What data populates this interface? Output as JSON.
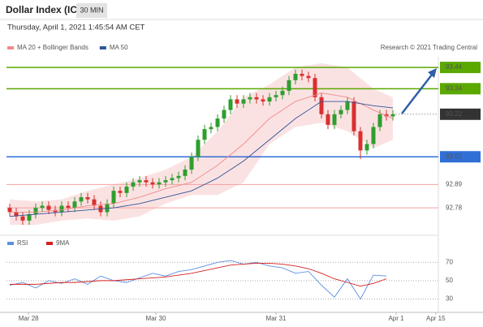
{
  "header": {
    "title": "Dollar Index (ICE)",
    "interval": "30 MIN",
    "timestamp": "Thursday, April 1, 2021 1:45:54 AM CET",
    "credit": "Research © 2021 Trading Central"
  },
  "chart_data": [
    {
      "type": "candlestick",
      "xlim": [
        -0.5,
        66
      ],
      "xticks": [
        {
          "value": 2.9,
          "label": "Mar 28"
        },
        {
          "value": 22.5,
          "label": "Mar 30"
        },
        {
          "value": 41,
          "label": "Mar 31"
        },
        {
          "value": 59.5,
          "label": "Apr 1"
        },
        {
          "value": 65.6,
          "label": "Apr 15"
        }
      ],
      "ylim": [
        92.67,
        93.49
      ],
      "open": [
        92.78,
        92.76,
        92.74,
        92.72,
        92.75,
        92.78,
        92.79,
        92.77,
        92.76,
        92.79,
        92.78,
        92.81,
        92.83,
        92.82,
        92.79,
        92.76,
        92.8,
        92.86,
        92.85,
        92.88,
        92.9,
        92.91,
        92.9,
        92.89,
        92.9,
        92.91,
        92.92,
        92.93,
        92.96,
        93.02,
        93.1,
        93.15,
        93.16,
        93.2,
        93.24,
        93.29,
        93.27,
        93.29,
        93.3,
        93.29,
        93.28,
        93.3,
        93.31,
        93.33,
        93.38,
        93.41,
        93.4,
        93.39,
        93.3,
        93.22,
        93.17,
        93.22,
        93.24,
        93.28,
        93.14,
        93.05,
        93.08,
        93.16,
        93.22,
        93.21
      ],
      "high": [
        92.8,
        92.78,
        92.76,
        92.77,
        92.8,
        92.81,
        92.81,
        92.79,
        92.81,
        92.81,
        92.83,
        92.85,
        92.85,
        92.84,
        92.81,
        92.82,
        92.88,
        92.88,
        92.9,
        92.92,
        92.93,
        92.93,
        92.92,
        92.92,
        92.93,
        92.94,
        92.95,
        92.98,
        93.04,
        93.12,
        93.17,
        93.18,
        93.22,
        93.26,
        93.31,
        93.31,
        93.31,
        93.32,
        93.32,
        93.31,
        93.32,
        93.33,
        93.35,
        93.4,
        93.43,
        93.43,
        93.42,
        93.41,
        93.32,
        93.24,
        93.24,
        93.26,
        93.3,
        93.3,
        93.16,
        93.1,
        93.18,
        93.24,
        93.24,
        93.24
      ],
      "low": [
        92.74,
        92.72,
        92.7,
        92.7,
        92.73,
        92.76,
        92.75,
        92.74,
        92.74,
        92.76,
        92.76,
        92.79,
        92.8,
        92.77,
        92.74,
        92.74,
        92.78,
        92.83,
        92.83,
        92.86,
        92.88,
        92.88,
        92.87,
        92.87,
        92.88,
        92.89,
        92.9,
        92.91,
        92.94,
        93.0,
        93.08,
        93.13,
        93.14,
        93.18,
        93.22,
        93.25,
        93.25,
        93.27,
        93.27,
        93.26,
        93.26,
        93.28,
        93.29,
        93.31,
        93.36,
        93.38,
        93.37,
        93.28,
        93.2,
        93.15,
        93.15,
        93.2,
        93.22,
        93.12,
        93.01,
        93.03,
        93.06,
        93.14,
        93.19,
        93.19
      ],
      "close": [
        92.76,
        92.74,
        92.72,
        92.75,
        92.78,
        92.79,
        92.77,
        92.76,
        92.79,
        92.78,
        92.81,
        92.83,
        92.82,
        92.79,
        92.76,
        92.8,
        92.86,
        92.85,
        92.88,
        92.9,
        92.91,
        92.9,
        92.89,
        92.9,
        92.91,
        92.92,
        92.93,
        92.96,
        93.02,
        93.1,
        93.15,
        93.16,
        93.2,
        93.24,
        93.29,
        93.27,
        93.29,
        93.3,
        93.29,
        93.28,
        93.3,
        93.31,
        93.33,
        93.38,
        93.41,
        93.4,
        93.39,
        93.3,
        93.22,
        93.17,
        93.22,
        93.24,
        93.28,
        93.14,
        93.05,
        93.08,
        93.16,
        93.22,
        93.21,
        93.22
      ],
      "up_color": "#2e9e2e",
      "down_color": "#d93030",
      "series": [
        {
          "name": "MA 20 + Bollinger Bands",
          "color": "#f08a8a",
          "x": [
            0,
            4,
            8,
            12,
            16,
            20,
            24,
            28,
            32,
            36,
            40,
            44,
            48,
            52,
            56,
            59
          ],
          "values": [
            92.76,
            92.76,
            92.77,
            92.79,
            92.8,
            92.83,
            92.87,
            92.9,
            92.98,
            93.08,
            93.2,
            93.28,
            93.32,
            93.3,
            93.24,
            93.2
          ],
          "upper": [
            92.82,
            92.81,
            92.82,
            92.86,
            92.89,
            92.92,
            92.96,
            93.02,
            93.14,
            93.3,
            93.36,
            93.44,
            93.46,
            93.44,
            93.34,
            93.3
          ],
          "lower": [
            92.7,
            92.7,
            92.72,
            92.73,
            92.72,
            92.74,
            92.8,
            92.84,
            92.84,
            92.9,
            93.08,
            93.16,
            93.18,
            93.14,
            93.06,
            93.1
          ]
        },
        {
          "name": "MA 50",
          "color": "#2f5597",
          "x": [
            0,
            4,
            8,
            12,
            16,
            20,
            24,
            28,
            32,
            36,
            40,
            44,
            48,
            52,
            56,
            59
          ],
          "values": [
            92.74,
            92.75,
            92.76,
            92.77,
            92.78,
            92.8,
            92.83,
            92.86,
            92.92,
            93.0,
            93.1,
            93.2,
            93.28,
            93.28,
            93.26,
            93.25
          ]
        }
      ],
      "levels": [
        {
          "value": 93.44,
          "color": "#5aa800",
          "text_color": "#ffffff"
        },
        {
          "value": 93.34,
          "color": "#5aa800",
          "text_color": "#ffffff"
        },
        {
          "value": 93.22,
          "color": "#333333",
          "text_color": "#ffffff"
        },
        {
          "value": 93.02,
          "color": "#2f6fd6",
          "text_color": "#ffffff"
        },
        {
          "value": 92.89,
          "color": "#f4a0a0",
          "text_color": "#d93030"
        },
        {
          "value": 92.78,
          "color": "#f4a0a0",
          "text_color": "#d93030"
        }
      ]
    },
    {
      "type": "line",
      "ylim": [
        18,
        80
      ],
      "yticks": [
        30,
        50,
        70
      ],
      "series": [
        {
          "name": "RSI",
          "color": "#5b8fe0",
          "x": [
            0,
            2,
            4,
            6,
            8,
            10,
            12,
            14,
            16,
            18,
            20,
            22,
            24,
            26,
            28,
            30,
            32,
            34,
            36,
            38,
            40,
            42,
            44,
            46,
            48,
            50,
            52,
            54,
            56,
            58
          ],
          "values": [
            45,
            48,
            42,
            50,
            47,
            52,
            46,
            55,
            50,
            48,
            53,
            58,
            55,
            60,
            62,
            66,
            70,
            72,
            68,
            70,
            66,
            64,
            58,
            60,
            45,
            32,
            52,
            30,
            56,
            55
          ]
        },
        {
          "name": "9MA",
          "color": "#d62020",
          "x": [
            0,
            2,
            4,
            6,
            8,
            10,
            12,
            14,
            16,
            18,
            20,
            22,
            24,
            26,
            28,
            30,
            32,
            34,
            36,
            38,
            40,
            42,
            44,
            46,
            48,
            50,
            52,
            54,
            56,
            58
          ],
          "values": [
            46,
            46,
            46,
            47,
            48,
            48,
            49,
            50,
            50,
            51,
            52,
            53,
            54,
            56,
            58,
            61,
            64,
            67,
            68,
            69,
            69,
            68,
            66,
            63,
            58,
            52,
            48,
            44,
            47,
            52
          ]
        }
      ]
    }
  ]
}
